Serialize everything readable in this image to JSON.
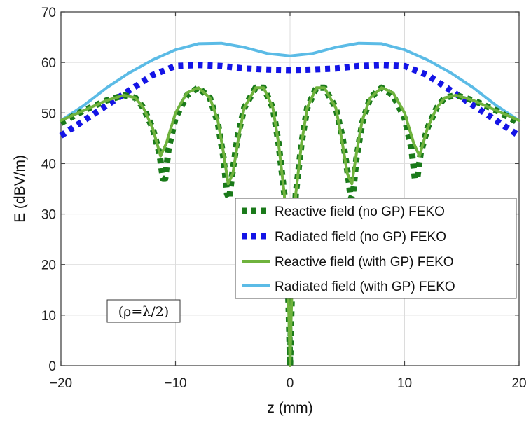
{
  "chart_data": {
    "type": "line",
    "title": "",
    "xlabel": "z (mm)",
    "ylabel": "E (dBV/m)",
    "xlim": [
      -20,
      20
    ],
    "ylim": [
      0,
      70
    ],
    "xticks": [
      -20,
      -10,
      0,
      10,
      20
    ],
    "yticks": [
      0,
      10,
      20,
      30,
      40,
      50,
      60,
      70
    ],
    "grid": true,
    "legend_position": "lower-right",
    "annotation": "(ρ=λ/2)",
    "series": [
      {
        "name": "Reactive field (no GP) FEKO",
        "color": "#1a7a1a",
        "style": "dotted",
        "x": [
          -20,
          -18,
          -16,
          -14.5,
          -13.5,
          -12.8,
          -12,
          -11.4,
          -11.1,
          -10.9,
          -10.6,
          -10,
          -9,
          -8,
          -7,
          -6.3,
          -5.8,
          -5.5,
          -5.3,
          -5.1,
          -4.6,
          -4,
          -3,
          -2.3,
          -1.5,
          -1,
          -0.5,
          -0.25,
          -0.08,
          0,
          0.08,
          0.25,
          0.5,
          1,
          1.5,
          2.3,
          3,
          4,
          4.6,
          5.1,
          5.3,
          5.5,
          5.8,
          6.3,
          7,
          8,
          9,
          10,
          10.6,
          10.9,
          11.1,
          11.4,
          12,
          12.8,
          13.5,
          14.5,
          16,
          18,
          20
        ],
        "y": [
          48,
          50.5,
          52.5,
          53.5,
          53,
          51,
          47,
          42,
          37,
          37,
          43,
          49,
          53.5,
          55,
          53,
          48,
          41,
          34,
          33,
          37,
          45,
          51,
          55,
          55,
          51,
          44,
          34,
          22,
          8,
          0,
          8,
          22,
          34,
          44,
          51,
          55,
          55,
          51,
          45,
          37,
          33,
          34,
          41,
          48,
          53,
          55,
          53.5,
          49,
          43,
          37,
          37,
          42,
          47,
          51,
          53,
          53.5,
          52.5,
          50.5,
          48
        ]
      },
      {
        "name": "Radiated field (no GP) FEKO",
        "color": "#1414e6",
        "style": "dotted",
        "x": [
          -20,
          -18,
          -16,
          -14,
          -12,
          -10,
          -8,
          -6,
          -4,
          -2,
          0,
          2,
          4,
          6,
          8,
          10,
          12,
          14,
          16,
          18,
          20
        ],
        "y": [
          45.5,
          48.5,
          51.5,
          54.5,
          57.5,
          59.3,
          59.5,
          59.3,
          58.8,
          58.6,
          58.5,
          58.6,
          58.8,
          59.3,
          59.5,
          59.3,
          57.5,
          54.5,
          51.5,
          48.5,
          45.5
        ]
      },
      {
        "name": "Reactive field (with GP) FEKO",
        "color": "#6fb33d",
        "style": "solid",
        "x": [
          -20,
          -18,
          -16,
          -14.5,
          -13.5,
          -12.8,
          -12,
          -11.3,
          -10.8,
          -10,
          -9,
          -8,
          -7,
          -6.3,
          -5.8,
          -5.4,
          -5,
          -4.5,
          -4,
          -3,
          -2.3,
          -1.5,
          -1,
          -0.5,
          -0.25,
          -0.08,
          0,
          0.08,
          0.25,
          0.5,
          1,
          1.5,
          2.3,
          3,
          4,
          4.5,
          5,
          5.4,
          5.8,
          6.3,
          7,
          8,
          9,
          10,
          10.8,
          11.3,
          12,
          12.8,
          13.5,
          14.5,
          16,
          18,
          20
        ],
        "y": [
          48.5,
          50.5,
          52.5,
          53.5,
          53,
          51,
          47,
          41.5,
          44,
          50,
          54,
          55,
          53,
          48.5,
          42,
          36,
          38,
          45,
          51,
          55,
          55,
          51,
          44,
          34,
          22,
          8,
          0,
          8,
          22,
          34,
          44,
          51,
          55,
          55,
          51,
          45,
          38,
          36,
          42,
          48.5,
          53,
          55,
          54,
          50,
          44,
          41.5,
          47,
          51,
          53,
          53.5,
          52.5,
          50.5,
          48.5
        ]
      },
      {
        "name": "Radiated field (with GP) FEKO",
        "color": "#5bbbe6",
        "style": "solid",
        "x": [
          -20,
          -18,
          -16,
          -14,
          -12,
          -10,
          -8,
          -6,
          -4,
          -2,
          0,
          2,
          4,
          6,
          8,
          10,
          12,
          14,
          16,
          18,
          20
        ],
        "y": [
          48.5,
          51.5,
          55,
          58,
          60.5,
          62.5,
          63.7,
          63.8,
          63,
          61.8,
          61.3,
          61.8,
          63,
          63.8,
          63.7,
          62.5,
          60.5,
          58,
          55,
          51.5,
          48.5
        ]
      }
    ]
  }
}
